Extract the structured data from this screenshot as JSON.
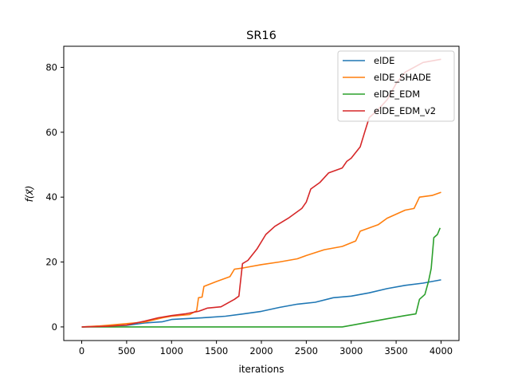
{
  "chart_data": {
    "type": "line",
    "title": "SR16",
    "xlabel": "iterations",
    "ylabel": "f(x⃗)",
    "xlim": [
      -200,
      4200
    ],
    "ylim": [
      -4.2,
      86.5
    ],
    "xticks": [
      0,
      500,
      1000,
      1500,
      2000,
      2500,
      3000,
      3500,
      4000
    ],
    "yticks": [
      0,
      20,
      40,
      60,
      80
    ],
    "xtick_labels": [
      "0",
      "500",
      "1000",
      "1500",
      "2000",
      "2500",
      "3000",
      "3500",
      "4000"
    ],
    "ytick_labels": [
      "0",
      "20",
      "40",
      "60",
      "80"
    ],
    "grid": false,
    "legend_position": "top-right",
    "series": [
      {
        "name": "elDE",
        "color": "#1f77b4",
        "points": [
          [
            0,
            0
          ],
          [
            200,
            0.2
          ],
          [
            500,
            0.5
          ],
          [
            700,
            1.2
          ],
          [
            900,
            1.6
          ],
          [
            1000,
            2.3
          ],
          [
            1200,
            2.6
          ],
          [
            1400,
            2.9
          ],
          [
            1600,
            3.3
          ],
          [
            1800,
            4.0
          ],
          [
            2000,
            4.8
          ],
          [
            2200,
            6.0
          ],
          [
            2400,
            7.0
          ],
          [
            2600,
            7.6
          ],
          [
            2800,
            9.0
          ],
          [
            3000,
            9.5
          ],
          [
            3200,
            10.5
          ],
          [
            3400,
            11.8
          ],
          [
            3600,
            12.8
          ],
          [
            3800,
            13.5
          ],
          [
            4000,
            14.5
          ]
        ]
      },
      {
        "name": "elDE_SHADE",
        "color": "#ff7f0e",
        "points": [
          [
            0,
            0
          ],
          [
            200,
            0.3
          ],
          [
            500,
            1.0
          ],
          [
            700,
            1.5
          ],
          [
            900,
            2.8
          ],
          [
            1000,
            3.3
          ],
          [
            1200,
            3.8
          ],
          [
            1280,
            5.0
          ],
          [
            1300,
            9.0
          ],
          [
            1340,
            9.2
          ],
          [
            1360,
            12.5
          ],
          [
            1500,
            14.0
          ],
          [
            1650,
            15.5
          ],
          [
            1700,
            17.8
          ],
          [
            1800,
            18.2
          ],
          [
            2000,
            19.2
          ],
          [
            2200,
            20.0
          ],
          [
            2400,
            21.0
          ],
          [
            2500,
            22.0
          ],
          [
            2700,
            23.8
          ],
          [
            2900,
            24.8
          ],
          [
            3050,
            26.5
          ],
          [
            3100,
            29.5
          ],
          [
            3300,
            31.5
          ],
          [
            3400,
            33.5
          ],
          [
            3600,
            36.0
          ],
          [
            3700,
            36.5
          ],
          [
            3760,
            40.0
          ],
          [
            3900,
            40.5
          ],
          [
            4000,
            41.5
          ]
        ]
      },
      {
        "name": "elDE_EDM",
        "color": "#2ca02c",
        "points": [
          [
            0,
            0
          ],
          [
            1000,
            0
          ],
          [
            2000,
            0
          ],
          [
            2900,
            0
          ],
          [
            3000,
            0.5
          ],
          [
            3200,
            1.5
          ],
          [
            3400,
            2.5
          ],
          [
            3600,
            3.5
          ],
          [
            3720,
            4.0
          ],
          [
            3760,
            8.5
          ],
          [
            3820,
            10.0
          ],
          [
            3860,
            14.0
          ],
          [
            3890,
            18.0
          ],
          [
            3920,
            27.5
          ],
          [
            3960,
            28.5
          ],
          [
            3990,
            30.5
          ]
        ]
      },
      {
        "name": "elDE_EDM_v2",
        "color": "#d62728",
        "points": [
          [
            0,
            0
          ],
          [
            300,
            0.2
          ],
          [
            500,
            0.6
          ],
          [
            700,
            1.8
          ],
          [
            850,
            2.8
          ],
          [
            1000,
            3.5
          ],
          [
            1150,
            4.0
          ],
          [
            1300,
            4.8
          ],
          [
            1400,
            5.8
          ],
          [
            1550,
            6.2
          ],
          [
            1700,
            8.5
          ],
          [
            1750,
            9.5
          ],
          [
            1790,
            19.5
          ],
          [
            1850,
            20.5
          ],
          [
            1950,
            24.0
          ],
          [
            2050,
            28.5
          ],
          [
            2150,
            31.0
          ],
          [
            2300,
            33.5
          ],
          [
            2450,
            36.5
          ],
          [
            2500,
            38.5
          ],
          [
            2550,
            42.5
          ],
          [
            2650,
            44.5
          ],
          [
            2750,
            47.5
          ],
          [
            2900,
            49.0
          ],
          [
            2950,
            51.0
          ],
          [
            3000,
            52.0
          ],
          [
            3100,
            55.5
          ],
          [
            3150,
            60.0
          ],
          [
            3200,
            64.5
          ],
          [
            3300,
            67.0
          ],
          [
            3400,
            70.0
          ],
          [
            3500,
            75.0
          ],
          [
            3600,
            78.5
          ],
          [
            3700,
            80.0
          ],
          [
            3800,
            81.5
          ],
          [
            4000,
            82.5
          ]
        ]
      }
    ]
  }
}
